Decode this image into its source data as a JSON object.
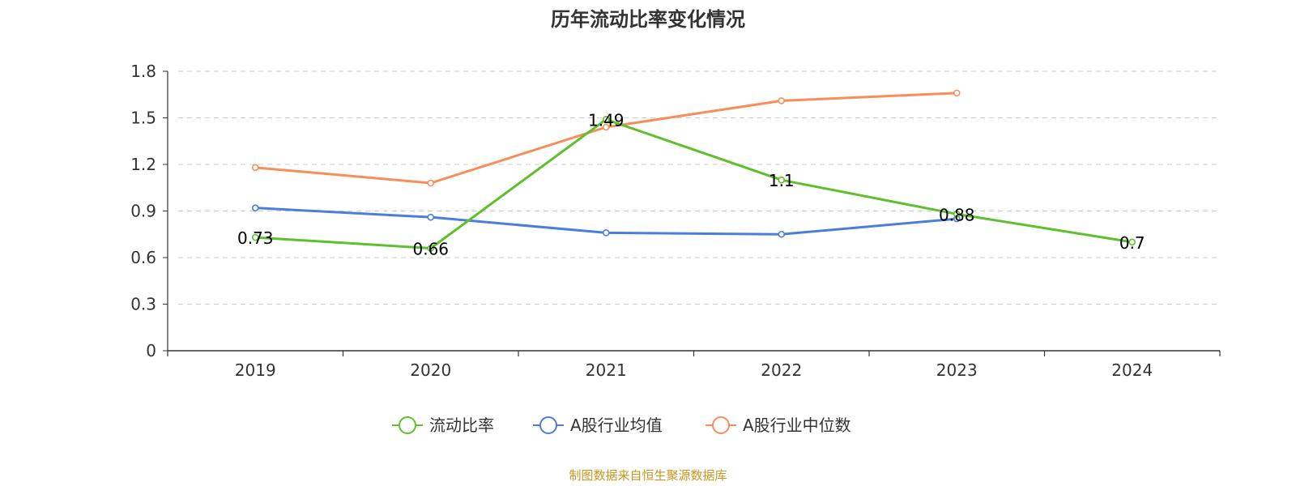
{
  "chart_data": {
    "type": "line",
    "title": "历年流动比率变化情况",
    "categories": [
      "2019",
      "2020",
      "2021",
      "2022",
      "2023",
      "2024"
    ],
    "ylim": [
      0,
      1.8
    ],
    "yticks": [
      "0",
      "0.3",
      "0.6",
      "0.9",
      "1.2",
      "1.5",
      "1.8"
    ],
    "grid": true,
    "legend_position": "bottom",
    "series": [
      {
        "name": "流动比率",
        "color": "#5ec02c",
        "values": [
          0.73,
          0.66,
          1.49,
          1.1,
          0.88,
          0.7
        ],
        "labels": [
          "0.73",
          "0.66",
          "1.49",
          "1.1",
          "0.88",
          "0.7"
        ]
      },
      {
        "name": "A股行业均值",
        "color": "#4a7edc",
        "values": [
          0.92,
          0.86,
          0.76,
          0.75,
          0.85,
          null
        ]
      },
      {
        "name": "A股行业中位数",
        "color": "#f78d58",
        "values": [
          1.18,
          1.08,
          1.44,
          1.61,
          1.66,
          null
        ]
      }
    ],
    "source": "制图数据来自恒生聚源数据库"
  }
}
